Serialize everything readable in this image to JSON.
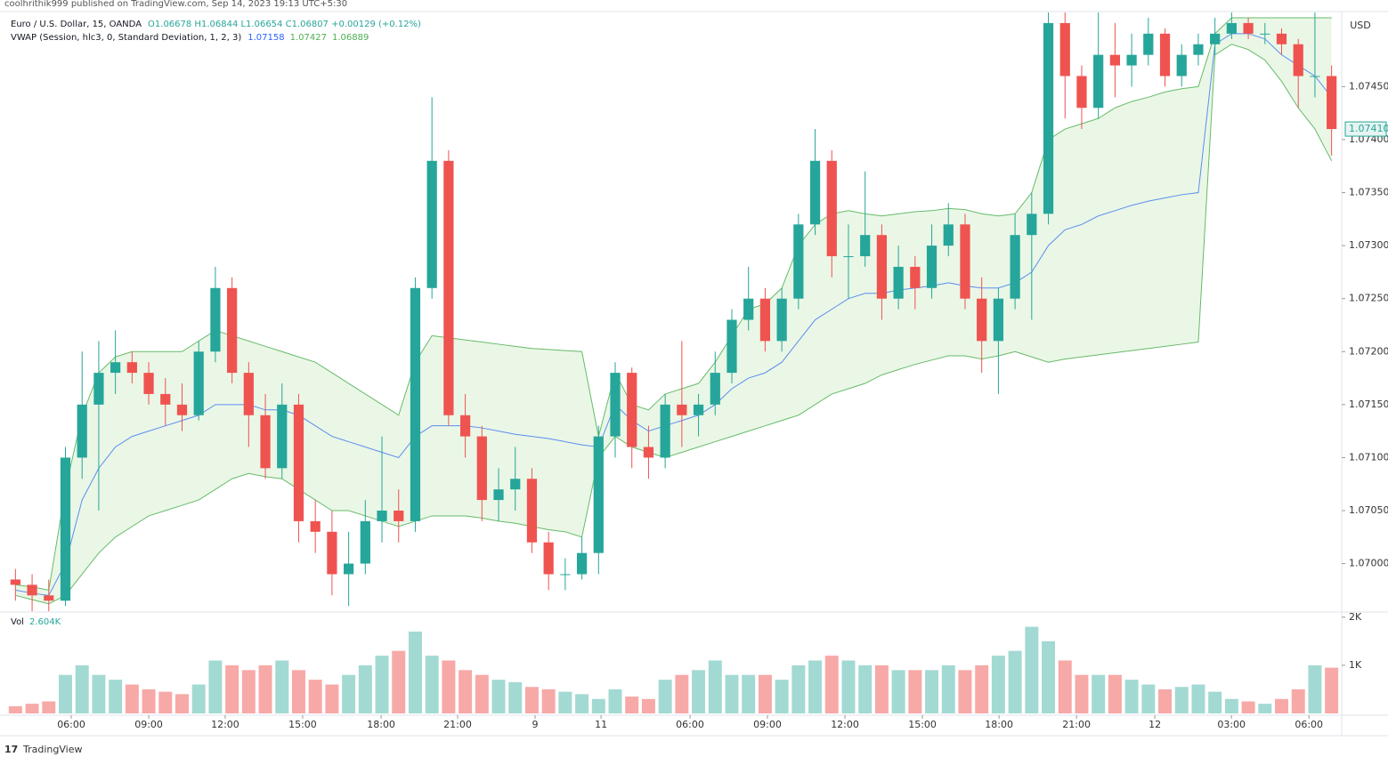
{
  "header": {
    "published": "coolhrithik999 published on TradingView.com, Sep 14, 2023 19:13 UTC+5:30",
    "brand": "TradingView"
  },
  "chart_data": {
    "type": "candlestick",
    "title": "Euro / U.S. Dollar, 15, OANDA",
    "ohlc_text": "O1.06678 H1.06844 L1.06654 C1.06807 +0.00129 (+0.12%)",
    "indicator": {
      "name": "VWAP (Session, hlc3, 0, Standard Deviation, 1, 2, 3)",
      "values": [
        "1.07158",
        "1.07427",
        "1.06889"
      ],
      "colors": [
        "#2962ff",
        "#4caf50",
        "#4caf50"
      ]
    },
    "currency": "USD",
    "last_price_label": "1.07410",
    "colors": {
      "up": "#26a69a",
      "down": "#ef5350",
      "up_volume": "#a3d9d3",
      "down_volume": "#f7a9a7",
      "band_fill": "#eaf7e6"
    },
    "xlim": [
      0,
      80
    ],
    "xticks": [
      {
        "value": 3.85,
        "label": "06:00"
      },
      {
        "value": 8.5,
        "label": "09:00"
      },
      {
        "value": 13.09,
        "label": "12:00"
      },
      {
        "value": 17.74,
        "label": "15:00"
      },
      {
        "value": 22.45,
        "label": "18:00"
      },
      {
        "value": 27.04,
        "label": "21:00"
      },
      {
        "value": 31.69,
        "label": "9"
      },
      {
        "value": 35.65,
        "label": "11"
      },
      {
        "value": 40.99,
        "label": "06:00"
      },
      {
        "value": 45.64,
        "label": "09:00"
      },
      {
        "value": 50.29,
        "label": "12:00"
      },
      {
        "value": 54.94,
        "label": "15:00"
      },
      {
        "value": 59.54,
        "label": "18:00"
      },
      {
        "value": 64.19,
        "label": "21:00"
      },
      {
        "value": 68.89,
        "label": "12"
      },
      {
        "value": 73.49,
        "label": "03:00"
      },
      {
        "value": 78.14,
        "label": "06:00"
      }
    ],
    "ylim": [
      1.06956,
      1.0752
    ],
    "yticks": [
      {
        "value": 1.07,
        "label": "1.07000"
      },
      {
        "value": 1.0705,
        "label": "1.07050"
      },
      {
        "value": 1.071,
        "label": "1.07100"
      },
      {
        "value": 1.0715,
        "label": "1.07150"
      },
      {
        "value": 1.072,
        "label": "1.07200"
      },
      {
        "value": 1.0725,
        "label": "1.07250"
      },
      {
        "value": 1.073,
        "label": "1.07300"
      },
      {
        "value": 1.0735,
        "label": "1.07350"
      },
      {
        "value": 1.074,
        "label": "1.07400"
      },
      {
        "value": 1.0745,
        "label": "1.07450"
      }
    ],
    "ohlc": [
      [
        1.06985,
        1.06995,
        1.06965,
        1.0698
      ],
      [
        1.0698,
        1.0699,
        1.06955,
        1.0697
      ],
      [
        1.0697,
        1.06985,
        1.06955,
        1.06965
      ],
      [
        1.06965,
        1.0711,
        1.0696,
        1.071
      ],
      [
        1.071,
        1.072,
        1.0708,
        1.0715
      ],
      [
        1.0715,
        1.0721,
        1.0705,
        1.0718
      ],
      [
        1.0718,
        1.0722,
        1.0716,
        1.0719
      ],
      [
        1.0719,
        1.072,
        1.0717,
        1.0718
      ],
      [
        1.0718,
        1.0719,
        1.0715,
        1.0716
      ],
      [
        1.0716,
        1.07175,
        1.0713,
        1.0715
      ],
      [
        1.0715,
        1.0717,
        1.07125,
        1.0714
      ],
      [
        1.0714,
        1.0721,
        1.07135,
        1.072
      ],
      [
        1.072,
        1.0728,
        1.0719,
        1.0726
      ],
      [
        1.0726,
        1.0727,
        1.0717,
        1.0718
      ],
      [
        1.0718,
        1.0719,
        1.0711,
        1.0714
      ],
      [
        1.0714,
        1.0716,
        1.0708,
        1.0709
      ],
      [
        1.0709,
        1.0717,
        1.0708,
        1.0715
      ],
      [
        1.0715,
        1.0716,
        1.0702,
        1.0704
      ],
      [
        1.0704,
        1.0706,
        1.0701,
        1.0703
      ],
      [
        1.0703,
        1.0705,
        1.0697,
        1.0699
      ],
      [
        1.0699,
        1.0703,
        1.0696,
        1.07
      ],
      [
        1.07,
        1.0706,
        1.0699,
        1.0704
      ],
      [
        1.0704,
        1.0712,
        1.0702,
        1.0705
      ],
      [
        1.0705,
        1.0707,
        1.0702,
        1.0704
      ],
      [
        1.0704,
        1.0727,
        1.0703,
        1.0726
      ],
      [
        1.0726,
        1.0744,
        1.0725,
        1.0738
      ],
      [
        1.0738,
        1.0739,
        1.0713,
        1.0714
      ],
      [
        1.0714,
        1.0716,
        1.071,
        1.0712
      ],
      [
        1.0712,
        1.0713,
        1.0704,
        1.0706
      ],
      [
        1.0706,
        1.0709,
        1.0704,
        1.0707
      ],
      [
        1.0707,
        1.0711,
        1.0705,
        1.0708
      ],
      [
        1.0708,
        1.0709,
        1.0701,
        1.0702
      ],
      [
        1.0702,
        1.0703,
        1.06975,
        1.0699
      ],
      [
        1.0699,
        1.07005,
        1.06975,
        1.0699
      ],
      [
        1.0699,
        1.07025,
        1.06985,
        1.0701
      ],
      [
        1.0701,
        1.0713,
        1.0699,
        1.0712
      ],
      [
        1.0712,
        1.0719,
        1.071,
        1.0718
      ],
      [
        1.0718,
        1.07185,
        1.0709,
        1.0711
      ],
      [
        1.0711,
        1.0713,
        1.0708,
        1.071
      ],
      [
        1.071,
        1.0716,
        1.0709,
        1.0715
      ],
      [
        1.0715,
        1.0721,
        1.0711,
        1.0714
      ],
      [
        1.0714,
        1.0716,
        1.0712,
        1.0715
      ],
      [
        1.0715,
        1.072,
        1.0714,
        1.0718
      ],
      [
        1.0718,
        1.0724,
        1.0717,
        1.0723
      ],
      [
        1.0723,
        1.0728,
        1.0722,
        1.0725
      ],
      [
        1.0725,
        1.0726,
        1.072,
        1.0721
      ],
      [
        1.0721,
        1.0726,
        1.072,
        1.0725
      ],
      [
        1.0725,
        1.0733,
        1.0724,
        1.0732
      ],
      [
        1.0732,
        1.0741,
        1.0731,
        1.0738
      ],
      [
        1.0738,
        1.0739,
        1.0727,
        1.0729
      ],
      [
        1.0729,
        1.0732,
        1.0725,
        1.0729
      ],
      [
        1.0729,
        1.0737,
        1.0728,
        1.0731
      ],
      [
        1.0731,
        1.0732,
        1.0723,
        1.0725
      ],
      [
        1.0725,
        1.073,
        1.0724,
        1.0728
      ],
      [
        1.0728,
        1.0729,
        1.0724,
        1.0726
      ],
      [
        1.0726,
        1.0732,
        1.0725,
        1.073
      ],
      [
        1.073,
        1.0734,
        1.0729,
        1.0732
      ],
      [
        1.0732,
        1.0733,
        1.0724,
        1.0725
      ],
      [
        1.0725,
        1.0727,
        1.0718,
        1.0721
      ],
      [
        1.0721,
        1.0726,
        1.0716,
        1.0725
      ],
      [
        1.0725,
        1.0733,
        1.0724,
        1.0731
      ],
      [
        1.0731,
        1.0735,
        1.0723,
        1.0733
      ],
      [
        1.0733,
        1.0752,
        1.0732,
        1.0751
      ],
      [
        1.0751,
        1.0752,
        1.0742,
        1.0746
      ],
      [
        1.0746,
        1.0747,
        1.0741,
        1.0743
      ],
      [
        1.0743,
        1.0752,
        1.0742,
        1.0748
      ],
      [
        1.0748,
        1.0751,
        1.0744,
        1.0747
      ],
      [
        1.0747,
        1.075,
        1.0745,
        1.0748
      ],
      [
        1.0748,
        1.07515,
        1.0747,
        1.075
      ],
      [
        1.075,
        1.07505,
        1.0745,
        1.0746
      ],
      [
        1.0746,
        1.0749,
        1.0745,
        1.0748
      ],
      [
        1.0748,
        1.075,
        1.0747,
        1.0749
      ],
      [
        1.0749,
        1.07515,
        1.0748,
        1.075
      ],
      [
        1.075,
        1.0752,
        1.07495,
        1.0751
      ],
      [
        1.0751,
        1.07515,
        1.07495,
        1.075
      ],
      [
        1.075,
        1.0751,
        1.0749,
        1.075
      ],
      [
        1.075,
        1.07505,
        1.0748,
        1.0749
      ],
      [
        1.0749,
        1.07495,
        1.0743,
        1.0746
      ],
      [
        1.0746,
        1.0752,
        1.0744,
        1.0746
      ],
      [
        1.0746,
        1.0747,
        1.07385,
        1.0741
      ]
    ],
    "vwap": {
      "color": "#5b8def",
      "values": [
        1.06975,
        1.06972,
        1.0697,
        1.07,
        1.0706,
        1.0709,
        1.0711,
        1.0712,
        1.07125,
        1.0713,
        1.07135,
        1.0714,
        1.0715,
        1.0715,
        1.0715,
        1.07145,
        1.07145,
        1.0714,
        1.0713,
        1.0712,
        1.07115,
        1.0711,
        1.07105,
        1.071,
        1.0712,
        1.0713,
        1.0713,
        1.0713,
        1.07128,
        1.07125,
        1.07122,
        1.0712,
        1.07118,
        1.07115,
        1.07112,
        1.0711,
        1.0715,
        1.07135,
        1.07125,
        1.0713,
        1.07135,
        1.0714,
        1.0715,
        1.07165,
        1.07175,
        1.0718,
        1.0719,
        1.0721,
        1.0723,
        1.0724,
        1.0725,
        1.07255,
        1.07255,
        1.07258,
        1.0726,
        1.07262,
        1.07265,
        1.07262,
        1.0726,
        1.0726,
        1.07265,
        1.07275,
        1.073,
        1.07315,
        1.0732,
        1.07328,
        1.07333,
        1.07338,
        1.07342,
        1.07345,
        1.07348,
        1.0735,
        1.0749,
        1.075,
        1.075,
        1.07495,
        1.0748,
        1.0747,
        1.0746,
        1.0744
      ]
    },
    "upper_band": {
      "color": "#66bb6a",
      "values": [
        1.0698,
        1.06978,
        1.06975,
        1.0707,
        1.0714,
        1.0718,
        1.07195,
        1.072,
        1.072,
        1.072,
        1.072,
        1.0721,
        1.0722,
        1.07215,
        1.0721,
        1.07205,
        1.072,
        1.07195,
        1.0719,
        1.0718,
        1.0717,
        1.0716,
        1.0715,
        1.0714,
        1.0719,
        1.07215,
        1.07213,
        1.07211,
        1.07209,
        1.07207,
        1.07205,
        1.07203,
        1.07202,
        1.07201,
        1.072,
        1.0712,
        1.0718,
        1.0715,
        1.07145,
        1.0716,
        1.07165,
        1.0717,
        1.0719,
        1.07215,
        1.0724,
        1.07245,
        1.0726,
        1.073,
        1.0732,
        1.0733,
        1.07333,
        1.0733,
        1.07328,
        1.0733,
        1.07332,
        1.07333,
        1.07335,
        1.07334,
        1.0733,
        1.07328,
        1.0733,
        1.0735,
        1.074,
        1.0741,
        1.07415,
        1.0742,
        1.0743,
        1.07436,
        1.0744,
        1.07445,
        1.07448,
        1.0745,
        1.075,
        1.07515,
        1.07515,
        1.07515,
        1.07515,
        1.07515,
        1.07515,
        1.07515
      ]
    },
    "lower_band": {
      "color": "#66bb6a",
      "values": [
        1.0697,
        1.06966,
        1.06962,
        1.0697,
        1.0699,
        1.0701,
        1.07025,
        1.07035,
        1.07045,
        1.0705,
        1.07055,
        1.0706,
        1.0707,
        1.0708,
        1.07085,
        1.07082,
        1.0708,
        1.0707,
        1.0706,
        1.0705,
        1.0705,
        1.07045,
        1.0704,
        1.07035,
        1.0704,
        1.07045,
        1.07045,
        1.07045,
        1.07043,
        1.0704,
        1.07038,
        1.07035,
        1.07032,
        1.0703,
        1.07025,
        1.071,
        1.0712,
        1.0711,
        1.07105,
        1.071,
        1.07105,
        1.0711,
        1.07115,
        1.0712,
        1.07125,
        1.0713,
        1.07135,
        1.0714,
        1.0715,
        1.0716,
        1.07165,
        1.0717,
        1.07178,
        1.07183,
        1.07188,
        1.07192,
        1.07196,
        1.07196,
        1.07193,
        1.07196,
        1.072,
        1.07195,
        1.0719,
        1.07193,
        1.07195,
        1.07197,
        1.07199,
        1.07201,
        1.07203,
        1.07205,
        1.07207,
        1.07209,
        1.0748,
        1.0749,
        1.07485,
        1.07475,
        1.07455,
        1.0743,
        1.0741,
        1.0738
      ]
    },
    "volume": {
      "label": "Vol",
      "current_text": "2.604K",
      "ylim": [
        0,
        2070
      ],
      "yticks": [
        {
          "value": 1000,
          "label": "1K"
        },
        {
          "value": 2000,
          "label": "2K"
        }
      ],
      "values": [
        150,
        200,
        250,
        800,
        1000,
        800,
        700,
        600,
        500,
        450,
        400,
        600,
        1100,
        1000,
        900,
        1000,
        1100,
        900,
        700,
        600,
        800,
        1000,
        1200,
        1300,
        1700,
        1200,
        1100,
        900,
        800,
        700,
        650,
        550,
        500,
        450,
        400,
        300,
        500,
        350,
        300,
        700,
        800,
        900,
        1100,
        800,
        800,
        800,
        700,
        1000,
        1100,
        1200,
        1100,
        1000,
        1000,
        900,
        900,
        900,
        1000,
        900,
        1000,
        1200,
        1300,
        1800,
        1500,
        1100,
        800,
        800,
        800,
        700,
        600,
        500,
        550,
        600,
        450,
        300,
        250,
        200,
        300,
        500,
        1000,
        950
      ]
    }
  }
}
